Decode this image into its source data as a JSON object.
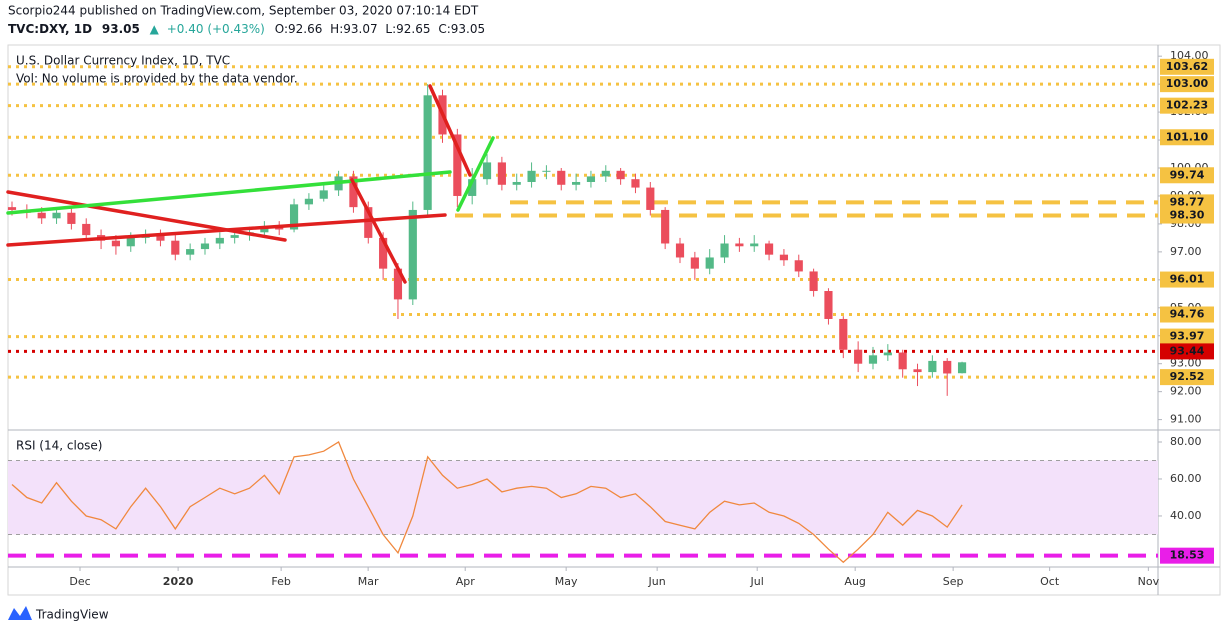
{
  "header": {
    "publisher": "Scorpio244 published on TradingView.com, September 03, 2020 07:10:14 EDT",
    "items": [
      "TVC:DXY, 1D",
      "93.05",
      "▲",
      "+0.40 (+0.43%)",
      "O:92.66",
      "H:93.07",
      "L:92.65",
      "C:93.05"
    ]
  },
  "footer": {
    "brand": "TradingView"
  },
  "chart_data": {
    "type": "candlestick",
    "title": "U.S. Dollar Currency Index, 1D, TVC",
    "subtitle": "Vol: No volume is provided by the data vendor.",
    "up_color": "#53b987",
    "down_color": "#eb4d5c",
    "open": [
      98.6,
      98.5,
      98.4,
      98.2,
      98.4,
      98.0,
      97.6,
      97.4,
      97.2,
      97.5,
      97.6,
      97.4,
      96.9,
      97.1,
      97.3,
      97.5,
      97.6,
      97.7,
      97.9,
      97.8,
      98.7,
      98.9,
      99.2,
      99.7,
      98.6,
      97.5,
      96.4,
      95.3,
      98.5,
      102.6,
      101.2,
      99.0,
      99.6,
      100.2,
      99.4,
      99.5,
      99.9,
      99.9,
      99.4,
      99.5,
      99.7,
      99.9,
      99.6,
      99.3,
      98.5,
      97.3,
      96.8,
      96.4,
      96.8,
      97.3,
      97.2,
      97.3,
      96.9,
      96.7,
      96.3,
      95.6,
      94.6,
      93.5,
      93.0,
      93.3,
      93.4,
      92.8,
      92.7,
      93.1,
      92.66
    ],
    "high": [
      98.8,
      98.7,
      98.6,
      98.6,
      98.6,
      98.2,
      97.8,
      97.6,
      97.7,
      97.8,
      97.8,
      97.6,
      97.3,
      97.5,
      97.7,
      97.8,
      97.9,
      98.1,
      98.1,
      98.9,
      99.1,
      99.4,
      99.9,
      99.9,
      98.8,
      97.7,
      96.6,
      98.8,
      103.0,
      102.8,
      101.4,
      100.0,
      100.5,
      100.4,
      99.8,
      100.2,
      100.1,
      100.0,
      99.8,
      99.9,
      100.1,
      100.0,
      99.8,
      99.5,
      98.6,
      97.5,
      97.0,
      97.1,
      97.6,
      97.5,
      97.6,
      97.4,
      97.1,
      96.9,
      96.4,
      95.7,
      94.7,
      93.8,
      93.6,
      93.7,
      93.5,
      93.0,
      93.3,
      93.2,
      93.07
    ],
    "low": [
      98.3,
      98.2,
      98.0,
      98.0,
      97.8,
      97.4,
      97.1,
      96.9,
      97.0,
      97.3,
      97.2,
      96.7,
      96.7,
      96.9,
      97.1,
      97.3,
      97.4,
      97.5,
      97.6,
      97.7,
      98.5,
      98.8,
      99.0,
      98.4,
      97.3,
      96.0,
      94.6,
      95.1,
      98.3,
      100.9,
      98.6,
      98.7,
      99.4,
      99.2,
      99.2,
      99.3,
      99.6,
      99.2,
      99.2,
      99.3,
      99.5,
      99.4,
      99.1,
      98.3,
      97.1,
      96.6,
      96.0,
      96.2,
      96.6,
      97.0,
      97.0,
      96.7,
      96.5,
      96.1,
      95.4,
      94.4,
      93.2,
      92.7,
      92.8,
      93.1,
      92.5,
      92.2,
      92.5,
      91.85,
      92.65
    ],
    "close": [
      98.5,
      98.4,
      98.2,
      98.4,
      98.0,
      97.6,
      97.4,
      97.2,
      97.5,
      97.6,
      97.4,
      96.9,
      97.1,
      97.3,
      97.5,
      97.6,
      97.7,
      97.9,
      97.8,
      98.7,
      98.9,
      99.2,
      99.7,
      98.6,
      97.5,
      96.4,
      95.3,
      98.5,
      102.6,
      101.2,
      99.0,
      99.6,
      100.2,
      99.4,
      99.5,
      99.9,
      99.9,
      99.4,
      99.5,
      99.7,
      99.9,
      99.6,
      99.3,
      98.5,
      97.3,
      96.8,
      96.4,
      96.8,
      97.3,
      97.2,
      97.3,
      96.9,
      96.7,
      96.3,
      95.6,
      94.6,
      93.5,
      93.0,
      93.3,
      93.4,
      92.8,
      92.7,
      93.1,
      92.65,
      93.05
    ],
    "xlim": [
      -0.27,
      77.2
    ],
    "xticks": [
      {
        "value": 4.58,
        "label": "Dec"
      },
      {
        "value": 11.19,
        "label": "2020"
      },
      {
        "value": 18.13,
        "label": "Feb"
      },
      {
        "value": 23.99,
        "label": "Mar"
      },
      {
        "value": 30.53,
        "label": "Apr"
      },
      {
        "value": 37.33,
        "label": "May"
      },
      {
        "value": 43.46,
        "label": "Jun"
      },
      {
        "value": 50.2,
        "label": "Jul"
      },
      {
        "value": 56.8,
        "label": "Aug"
      },
      {
        "value": 63.4,
        "label": "Sep"
      },
      {
        "value": 69.9,
        "label": "Oct"
      },
      {
        "value": 76.55,
        "label": "Nov"
      }
    ],
    "ylim": [
      90.7,
      104.4
    ],
    "yticks": [
      {
        "value": 91,
        "label": "91.00"
      },
      {
        "value": 92,
        "label": "92.00"
      },
      {
        "value": 93,
        "label": "93.00"
      },
      {
        "value": 94,
        "label": "94.00"
      },
      {
        "value": 95,
        "label": "95.00"
      },
      {
        "value": 96,
        "label": "96.00"
      },
      {
        "value": 97,
        "label": "97.00"
      },
      {
        "value": 98,
        "label": "98.00"
      },
      {
        "value": 99,
        "label": "99.00"
      },
      {
        "value": 100,
        "label": "100.00"
      },
      {
        "value": 101,
        "label": "101.00"
      },
      {
        "value": 102,
        "label": "102.00"
      },
      {
        "value": 103,
        "label": "103.00"
      },
      {
        "value": 104,
        "label": "104.00"
      }
    ],
    "levels": [
      {
        "value": 103.62,
        "label": "103.62",
        "style": "dotted",
        "color": "#f5c242"
      },
      {
        "value": 103,
        "label": "103.00",
        "style": "dotted",
        "color": "#f5c242"
      },
      {
        "value": 102.23,
        "label": "102.23",
        "style": "dotted",
        "color": "#f5c242"
      },
      {
        "value": 101.1,
        "label": "101.10",
        "style": "dotted",
        "color": "#f5c242"
      },
      {
        "value": 99.74,
        "label": "99.74",
        "style": "dotted",
        "color": "#f5c242"
      },
      {
        "value": 98.77,
        "label": "98.77",
        "style": "dashed",
        "color": "#f5c242"
      },
      {
        "value": 98.3,
        "label": "98.30",
        "style": "dashed",
        "color": "#f5c242"
      },
      {
        "value": 96.01,
        "label": "96.01",
        "style": "dotted",
        "color": "#f5c242"
      },
      {
        "value": 94.76,
        "label": "94.76",
        "style": "dotted",
        "color": "#f5c242"
      },
      {
        "value": 93.97,
        "label": "93.97",
        "style": "dotted",
        "color": "#f5c242"
      },
      {
        "value": 93.44,
        "label": "93.44",
        "style": "dotted",
        "color": "#d50000"
      },
      {
        "value": 92.52,
        "label": "92.52",
        "style": "dotted",
        "color": "#f5c242"
      }
    ],
    "indicator": {
      "type": "line",
      "title": "RSI (14, close)",
      "color": "#f0883e",
      "values": [
        57,
        50,
        47,
        58,
        48,
        40,
        38,
        33,
        45,
        55,
        45,
        33,
        45,
        50,
        55,
        52,
        55,
        62,
        52,
        72,
        73,
        75,
        80,
        60,
        45,
        30,
        20,
        40,
        72,
        62,
        55,
        57,
        60,
        53,
        55,
        56,
        55,
        50,
        52,
        56,
        55,
        50,
        52,
        45,
        37,
        35,
        33,
        42,
        48,
        46,
        47,
        42,
        40,
        36,
        30,
        22,
        15,
        22,
        30,
        42,
        35,
        43,
        40,
        34,
        46
      ],
      "ylim": [
        12.4,
        85.4
      ],
      "yticks": [
        {
          "value": 40,
          "label": "40.00"
        },
        {
          "value": 60,
          "label": "60.00"
        },
        {
          "value": 80,
          "label": "80.00"
        }
      ],
      "band": [
        30,
        70
      ],
      "band_color": "#f3e1fa",
      "levels": [
        {
          "value": 18.53,
          "label": "18.53",
          "style": "dashed",
          "color": "#e91ee8"
        }
      ]
    }
  }
}
